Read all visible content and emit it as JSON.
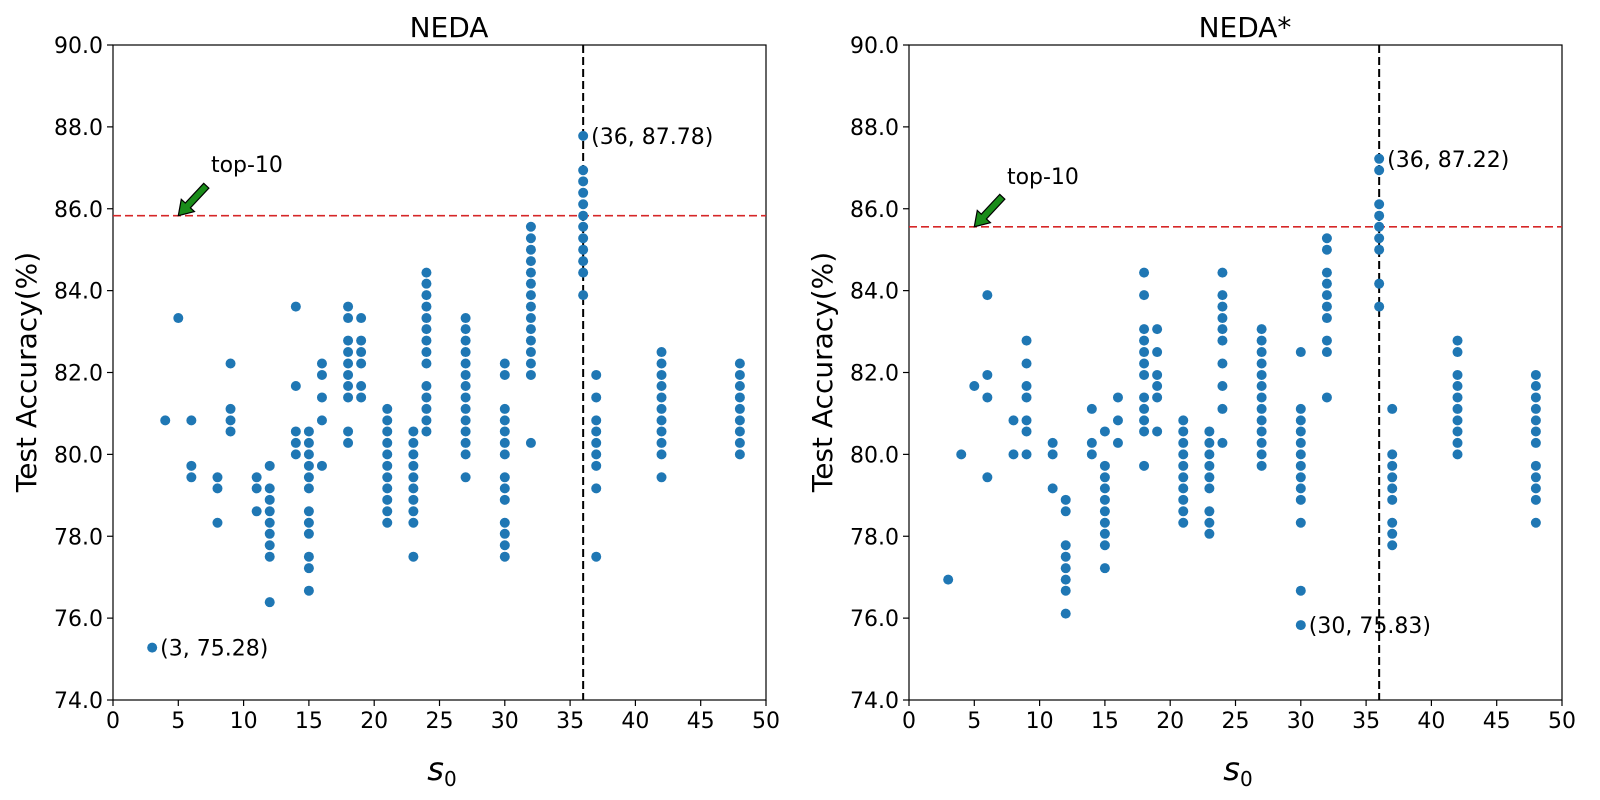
{
  "chart_data": [
    {
      "type": "scatter",
      "title": "NEDA",
      "xlabel": "s",
      "xlabel_sub": "0",
      "ylabel": "Test Accuracy(%)",
      "xlim": [
        0,
        50
      ],
      "ylim": [
        74.0,
        90.0
      ],
      "x_ticks": [
        0,
        5,
        10,
        15,
        20,
        25,
        30,
        35,
        40,
        45,
        50
      ],
      "y_ticks": [
        "74.0",
        "76.0",
        "78.0",
        "80.0",
        "82.0",
        "84.0",
        "86.0",
        "88.0",
        "90.0"
      ],
      "grid": false,
      "reference_lines": {
        "horizontal_y": 85.83,
        "vertical_x": 36
      },
      "annotations": [
        {
          "text": "top-10",
          "x": 7.5,
          "y": 86.9,
          "arrow_to": [
            5,
            85.83
          ]
        },
        {
          "text": "(36, 87.78)",
          "x": 36,
          "y": 87.78
        },
        {
          "text": "(3, 75.28)",
          "x": 3,
          "y": 75.28
        }
      ],
      "points": [
        [
          3,
          75.28
        ],
        [
          4,
          80.83
        ],
        [
          5,
          83.33
        ],
        [
          6,
          80.83
        ],
        [
          6,
          79.72
        ],
        [
          6,
          79.44
        ],
        [
          8,
          79.44
        ],
        [
          8,
          79.17
        ],
        [
          8,
          78.33
        ],
        [
          9,
          82.22
        ],
        [
          9,
          81.11
        ],
        [
          9,
          80.83
        ],
        [
          9,
          80.56
        ],
        [
          11,
          79.44
        ],
        [
          11,
          79.17
        ],
        [
          11,
          78.61
        ],
        [
          12,
          79.72
        ],
        [
          12,
          79.17
        ],
        [
          12,
          78.89
        ],
        [
          12,
          78.61
        ],
        [
          12,
          78.33
        ],
        [
          12,
          78.06
        ],
        [
          12,
          77.78
        ],
        [
          12,
          77.5
        ],
        [
          12,
          76.39
        ],
        [
          14,
          83.61
        ],
        [
          14,
          81.67
        ],
        [
          14,
          80.56
        ],
        [
          14,
          80.28
        ],
        [
          14,
          80.0
        ],
        [
          15,
          80.56
        ],
        [
          15,
          80.28
        ],
        [
          15,
          80.0
        ],
        [
          15,
          79.72
        ],
        [
          15,
          79.44
        ],
        [
          15,
          79.17
        ],
        [
          15,
          78.61
        ],
        [
          15,
          78.33
        ],
        [
          15,
          78.06
        ],
        [
          15,
          77.5
        ],
        [
          15,
          77.22
        ],
        [
          15,
          76.67
        ],
        [
          16,
          82.22
        ],
        [
          16,
          81.94
        ],
        [
          16,
          81.39
        ],
        [
          16,
          80.83
        ],
        [
          16,
          79.72
        ],
        [
          18,
          83.61
        ],
        [
          18,
          83.33
        ],
        [
          18,
          82.78
        ],
        [
          18,
          82.5
        ],
        [
          18,
          82.22
        ],
        [
          18,
          81.94
        ],
        [
          18,
          81.67
        ],
        [
          18,
          81.39
        ],
        [
          18,
          80.56
        ],
        [
          18,
          80.28
        ],
        [
          19,
          83.33
        ],
        [
          19,
          82.78
        ],
        [
          19,
          82.5
        ],
        [
          19,
          82.22
        ],
        [
          19,
          81.67
        ],
        [
          19,
          81.39
        ],
        [
          21,
          81.11
        ],
        [
          21,
          80.83
        ],
        [
          21,
          80.56
        ],
        [
          21,
          80.28
        ],
        [
          21,
          80.0
        ],
        [
          21,
          79.72
        ],
        [
          21,
          79.44
        ],
        [
          21,
          79.17
        ],
        [
          21,
          78.89
        ],
        [
          21,
          78.61
        ],
        [
          21,
          78.33
        ],
        [
          23,
          80.56
        ],
        [
          23,
          80.28
        ],
        [
          23,
          80.0
        ],
        [
          23,
          79.72
        ],
        [
          23,
          79.44
        ],
        [
          23,
          79.17
        ],
        [
          23,
          78.89
        ],
        [
          23,
          78.61
        ],
        [
          23,
          78.33
        ],
        [
          23,
          77.5
        ],
        [
          24,
          84.44
        ],
        [
          24,
          84.17
        ],
        [
          24,
          83.89
        ],
        [
          24,
          83.61
        ],
        [
          24,
          83.33
        ],
        [
          24,
          83.06
        ],
        [
          24,
          82.78
        ],
        [
          24,
          82.5
        ],
        [
          24,
          82.22
        ],
        [
          24,
          81.67
        ],
        [
          24,
          81.39
        ],
        [
          24,
          81.11
        ],
        [
          24,
          80.83
        ],
        [
          24,
          80.56
        ],
        [
          27,
          83.33
        ],
        [
          27,
          83.06
        ],
        [
          27,
          82.78
        ],
        [
          27,
          82.5
        ],
        [
          27,
          82.22
        ],
        [
          27,
          81.94
        ],
        [
          27,
          81.67
        ],
        [
          27,
          81.39
        ],
        [
          27,
          81.11
        ],
        [
          27,
          80.83
        ],
        [
          27,
          80.56
        ],
        [
          27,
          80.28
        ],
        [
          27,
          80.0
        ],
        [
          27,
          79.44
        ],
        [
          30,
          82.22
        ],
        [
          30,
          81.94
        ],
        [
          30,
          81.11
        ],
        [
          30,
          80.83
        ],
        [
          30,
          80.56
        ],
        [
          30,
          80.28
        ],
        [
          30,
          80.0
        ],
        [
          30,
          79.44
        ],
        [
          30,
          79.17
        ],
        [
          30,
          78.89
        ],
        [
          30,
          78.33
        ],
        [
          30,
          78.06
        ],
        [
          30,
          77.78
        ],
        [
          30,
          77.5
        ],
        [
          32,
          85.56
        ],
        [
          32,
          85.28
        ],
        [
          32,
          85.0
        ],
        [
          32,
          84.72
        ],
        [
          32,
          84.44
        ],
        [
          32,
          84.17
        ],
        [
          32,
          83.89
        ],
        [
          32,
          83.61
        ],
        [
          32,
          83.33
        ],
        [
          32,
          83.06
        ],
        [
          32,
          82.78
        ],
        [
          32,
          82.5
        ],
        [
          32,
          82.22
        ],
        [
          32,
          81.94
        ],
        [
          32,
          80.28
        ],
        [
          36,
          87.78
        ],
        [
          36,
          86.94
        ],
        [
          36,
          86.67
        ],
        [
          36,
          86.39
        ],
        [
          36,
          86.11
        ],
        [
          36,
          85.83
        ],
        [
          36,
          85.56
        ],
        [
          36,
          85.28
        ],
        [
          36,
          85.0
        ],
        [
          36,
          84.72
        ],
        [
          36,
          84.44
        ],
        [
          36,
          83.89
        ],
        [
          37,
          81.94
        ],
        [
          37,
          81.39
        ],
        [
          37,
          80.83
        ],
        [
          37,
          80.56
        ],
        [
          37,
          80.28
        ],
        [
          37,
          80.0
        ],
        [
          37,
          79.72
        ],
        [
          37,
          79.17
        ],
        [
          37,
          77.5
        ],
        [
          42,
          82.5
        ],
        [
          42,
          82.22
        ],
        [
          42,
          81.94
        ],
        [
          42,
          81.67
        ],
        [
          42,
          81.39
        ],
        [
          42,
          81.11
        ],
        [
          42,
          80.83
        ],
        [
          42,
          80.56
        ],
        [
          42,
          80.28
        ],
        [
          42,
          80.0
        ],
        [
          42,
          79.44
        ],
        [
          48,
          82.22
        ],
        [
          48,
          81.94
        ],
        [
          48,
          81.67
        ],
        [
          48,
          81.39
        ],
        [
          48,
          81.11
        ],
        [
          48,
          80.83
        ],
        [
          48,
          80.56
        ],
        [
          48,
          80.28
        ],
        [
          48,
          80.0
        ]
      ]
    },
    {
      "type": "scatter",
      "title": "NEDA*",
      "xlabel": "s",
      "xlabel_sub": "0",
      "ylabel": "Test Accuracy(%)",
      "xlim": [
        0,
        50
      ],
      "ylim": [
        74.0,
        90.0
      ],
      "x_ticks": [
        0,
        5,
        10,
        15,
        20,
        25,
        30,
        35,
        40,
        45,
        50
      ],
      "y_ticks": [
        "74.0",
        "76.0",
        "78.0",
        "80.0",
        "82.0",
        "84.0",
        "86.0",
        "88.0",
        "90.0"
      ],
      "grid": false,
      "reference_lines": {
        "horizontal_y": 85.56,
        "vertical_x": 36
      },
      "annotations": [
        {
          "text": "top-10",
          "x": 7.5,
          "y": 86.6,
          "arrow_to": [
            5,
            85.56
          ]
        },
        {
          "text": "(36, 87.22)",
          "x": 36,
          "y": 87.22
        },
        {
          "text": "(30, 75.83)",
          "x": 30,
          "y": 75.83
        }
      ],
      "points": [
        [
          3,
          76.94
        ],
        [
          4,
          80.0
        ],
        [
          5,
          81.67
        ],
        [
          6,
          83.89
        ],
        [
          6,
          81.94
        ],
        [
          6,
          81.39
        ],
        [
          6,
          79.44
        ],
        [
          8,
          80.83
        ],
        [
          8,
          80.0
        ],
        [
          9,
          82.78
        ],
        [
          9,
          82.22
        ],
        [
          9,
          81.67
        ],
        [
          9,
          81.39
        ],
        [
          9,
          80.83
        ],
        [
          9,
          80.56
        ],
        [
          9,
          80.0
        ],
        [
          11,
          80.28
        ],
        [
          11,
          80.0
        ],
        [
          11,
          79.17
        ],
        [
          12,
          78.89
        ],
        [
          12,
          78.61
        ],
        [
          12,
          77.78
        ],
        [
          12,
          77.5
        ],
        [
          12,
          77.22
        ],
        [
          12,
          76.94
        ],
        [
          12,
          76.67
        ],
        [
          12,
          76.11
        ],
        [
          14,
          81.11
        ],
        [
          14,
          80.28
        ],
        [
          14,
          80.0
        ],
        [
          15,
          80.56
        ],
        [
          15,
          79.72
        ],
        [
          15,
          79.44
        ],
        [
          15,
          79.17
        ],
        [
          15,
          78.89
        ],
        [
          15,
          78.61
        ],
        [
          15,
          78.33
        ],
        [
          15,
          78.06
        ],
        [
          15,
          77.78
        ],
        [
          15,
          77.22
        ],
        [
          16,
          81.39
        ],
        [
          16,
          80.83
        ],
        [
          16,
          80.28
        ],
        [
          18,
          84.44
        ],
        [
          18,
          83.89
        ],
        [
          18,
          83.06
        ],
        [
          18,
          82.78
        ],
        [
          18,
          82.5
        ],
        [
          18,
          82.22
        ],
        [
          18,
          81.94
        ],
        [
          18,
          81.39
        ],
        [
          18,
          81.11
        ],
        [
          18,
          80.83
        ],
        [
          18,
          80.56
        ],
        [
          18,
          79.72
        ],
        [
          19,
          83.06
        ],
        [
          19,
          82.5
        ],
        [
          19,
          81.94
        ],
        [
          19,
          81.67
        ],
        [
          19,
          81.39
        ],
        [
          19,
          80.56
        ],
        [
          21,
          80.83
        ],
        [
          21,
          80.56
        ],
        [
          21,
          80.28
        ],
        [
          21,
          80.0
        ],
        [
          21,
          79.72
        ],
        [
          21,
          79.44
        ],
        [
          21,
          79.17
        ],
        [
          21,
          78.89
        ],
        [
          21,
          78.61
        ],
        [
          21,
          78.33
        ],
        [
          23,
          80.56
        ],
        [
          23,
          80.28
        ],
        [
          23,
          80.0
        ],
        [
          23,
          79.72
        ],
        [
          23,
          79.44
        ],
        [
          23,
          79.17
        ],
        [
          23,
          78.61
        ],
        [
          23,
          78.33
        ],
        [
          23,
          78.06
        ],
        [
          24,
          84.44
        ],
        [
          24,
          83.89
        ],
        [
          24,
          83.61
        ],
        [
          24,
          83.33
        ],
        [
          24,
          83.06
        ],
        [
          24,
          82.78
        ],
        [
          24,
          82.22
        ],
        [
          24,
          81.67
        ],
        [
          24,
          81.11
        ],
        [
          24,
          80.28
        ],
        [
          27,
          83.06
        ],
        [
          27,
          82.78
        ],
        [
          27,
          82.5
        ],
        [
          27,
          82.22
        ],
        [
          27,
          81.94
        ],
        [
          27,
          81.67
        ],
        [
          27,
          81.39
        ],
        [
          27,
          81.11
        ],
        [
          27,
          80.83
        ],
        [
          27,
          80.56
        ],
        [
          27,
          80.28
        ],
        [
          27,
          80.0
        ],
        [
          27,
          79.72
        ],
        [
          30,
          82.5
        ],
        [
          30,
          81.11
        ],
        [
          30,
          80.83
        ],
        [
          30,
          80.56
        ],
        [
          30,
          80.28
        ],
        [
          30,
          80.0
        ],
        [
          30,
          79.72
        ],
        [
          30,
          79.44
        ],
        [
          30,
          79.17
        ],
        [
          30,
          78.89
        ],
        [
          30,
          78.33
        ],
        [
          30,
          76.67
        ],
        [
          30,
          75.83
        ],
        [
          32,
          85.28
        ],
        [
          32,
          85.0
        ],
        [
          32,
          84.44
        ],
        [
          32,
          84.17
        ],
        [
          32,
          83.89
        ],
        [
          32,
          83.61
        ],
        [
          32,
          83.33
        ],
        [
          32,
          82.78
        ],
        [
          32,
          82.5
        ],
        [
          32,
          81.39
        ],
        [
          36,
          87.22
        ],
        [
          36,
          86.94
        ],
        [
          36,
          86.11
        ],
        [
          36,
          85.83
        ],
        [
          36,
          85.56
        ],
        [
          36,
          85.28
        ],
        [
          36,
          85.0
        ],
        [
          36,
          84.17
        ],
        [
          36,
          83.61
        ],
        [
          37,
          81.11
        ],
        [
          37,
          80.0
        ],
        [
          37,
          79.72
        ],
        [
          37,
          79.44
        ],
        [
          37,
          79.17
        ],
        [
          37,
          78.89
        ],
        [
          37,
          78.33
        ],
        [
          37,
          78.06
        ],
        [
          37,
          77.78
        ],
        [
          42,
          82.78
        ],
        [
          42,
          82.5
        ],
        [
          42,
          81.94
        ],
        [
          42,
          81.67
        ],
        [
          42,
          81.39
        ],
        [
          42,
          81.11
        ],
        [
          42,
          80.83
        ],
        [
          42,
          80.56
        ],
        [
          42,
          80.28
        ],
        [
          42,
          80.0
        ],
        [
          48,
          81.94
        ],
        [
          48,
          81.67
        ],
        [
          48,
          81.39
        ],
        [
          48,
          81.11
        ],
        [
          48,
          80.83
        ],
        [
          48,
          80.56
        ],
        [
          48,
          80.28
        ],
        [
          48,
          79.72
        ],
        [
          48,
          79.44
        ],
        [
          48,
          79.17
        ],
        [
          48,
          78.89
        ],
        [
          48,
          78.33
        ]
      ]
    }
  ]
}
